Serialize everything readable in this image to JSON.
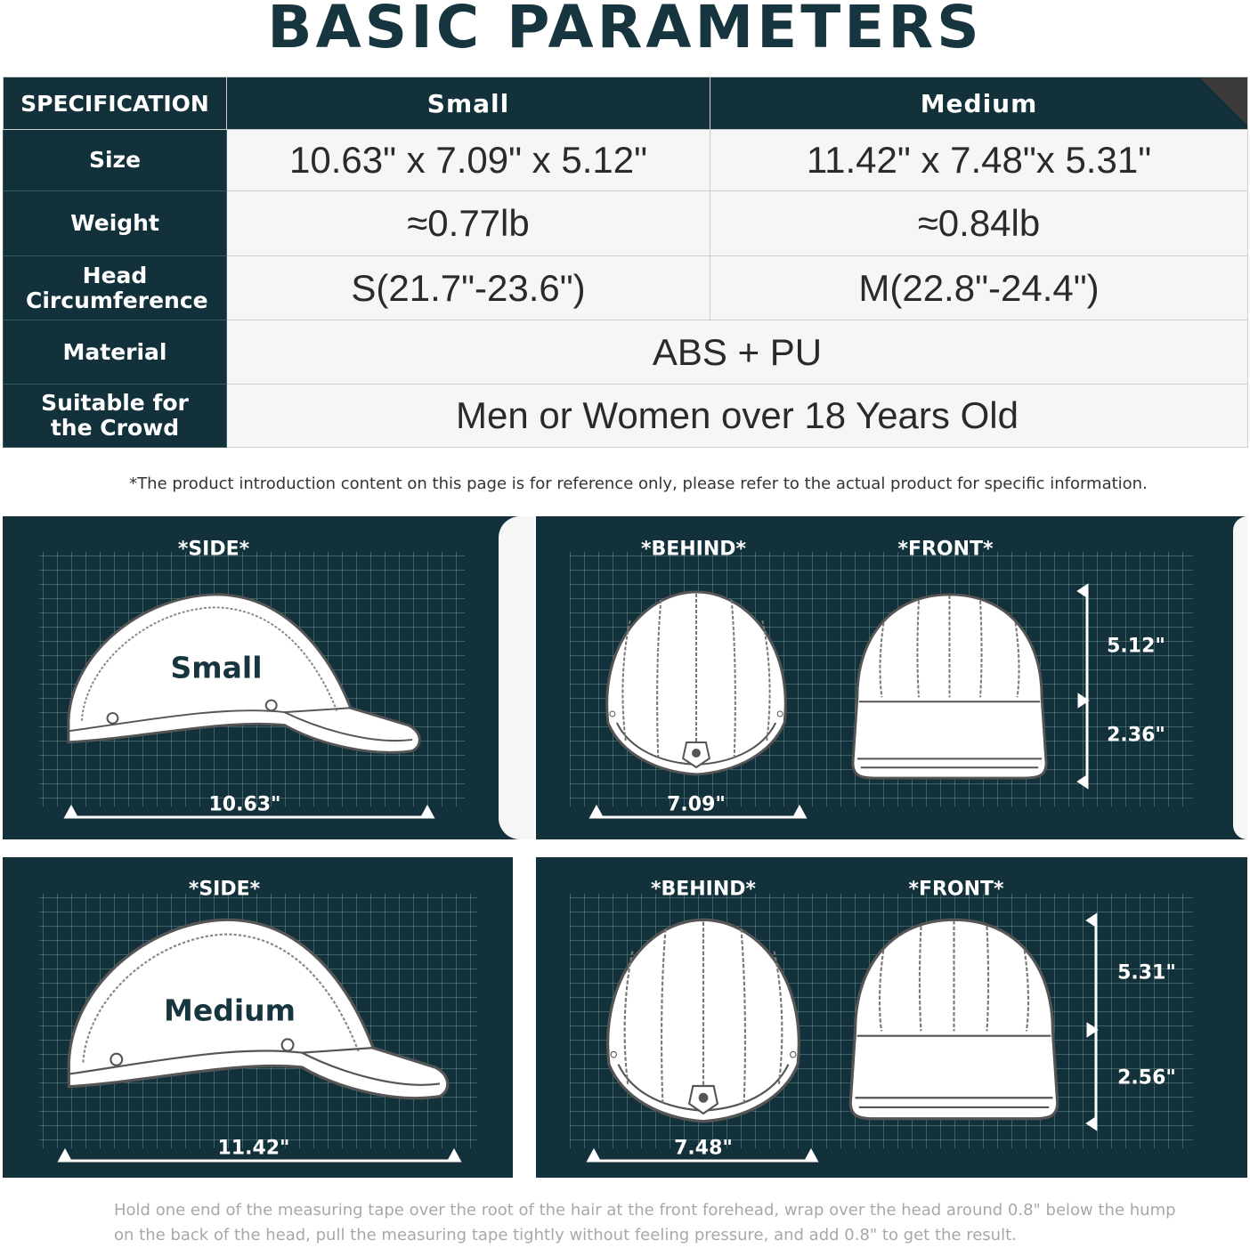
{
  "title": "BASIC PARAMETERS",
  "table": {
    "headers": [
      "SPECIFICATION",
      "Small",
      "Medium"
    ],
    "rows": [
      {
        "label": "Size",
        "small": "10.63\" x 7.09\" x 5.12\"",
        "medium": "11.42\" x 7.48\"x 5.31\""
      },
      {
        "label": "Weight",
        "small": "≈0.77lb",
        "medium": "≈0.84lb"
      },
      {
        "label": "Head Circumference",
        "small": "S(21.7\"-23.6\")",
        "medium": "M(22.8\"-24.4\")"
      },
      {
        "label": "Material",
        "both": "ABS + PU"
      },
      {
        "label": "Suitable for the Crowd",
        "both": "Men or Women over 18 Years Old"
      }
    ]
  },
  "note": "*The product introduction content on this page is for reference only, please refer to the actual product for specific information.",
  "diagrams": {
    "small": {
      "side_label": "*SIDE*",
      "behind_label": "*BEHIND*",
      "front_label": "*FRONT*",
      "name": "Small",
      "length": "10.63\"",
      "width": "7.09\"",
      "height_top": "5.12\"",
      "height_bottom": "2.36\""
    },
    "medium": {
      "side_label": "*SIDE*",
      "behind_label": "*BEHIND*",
      "front_label": "*FRONT*",
      "name": "Medium",
      "length": "11.42\"",
      "width": "7.48\"",
      "height_top": "5.31\"",
      "height_bottom": "2.56\""
    }
  },
  "footer": [
    "Hold one end of the measuring tape over the root of the hair at the front forehead, wrap over the head around 0.8\"  below the hump",
    "on the back of the head, pull the measuring tape tightly without feeling pressure, and add 0.8\"  to get the result."
  ],
  "colors": {
    "primary": "#12313a",
    "cell": "#f6f6f6",
    "grid": "#6f8f95"
  }
}
